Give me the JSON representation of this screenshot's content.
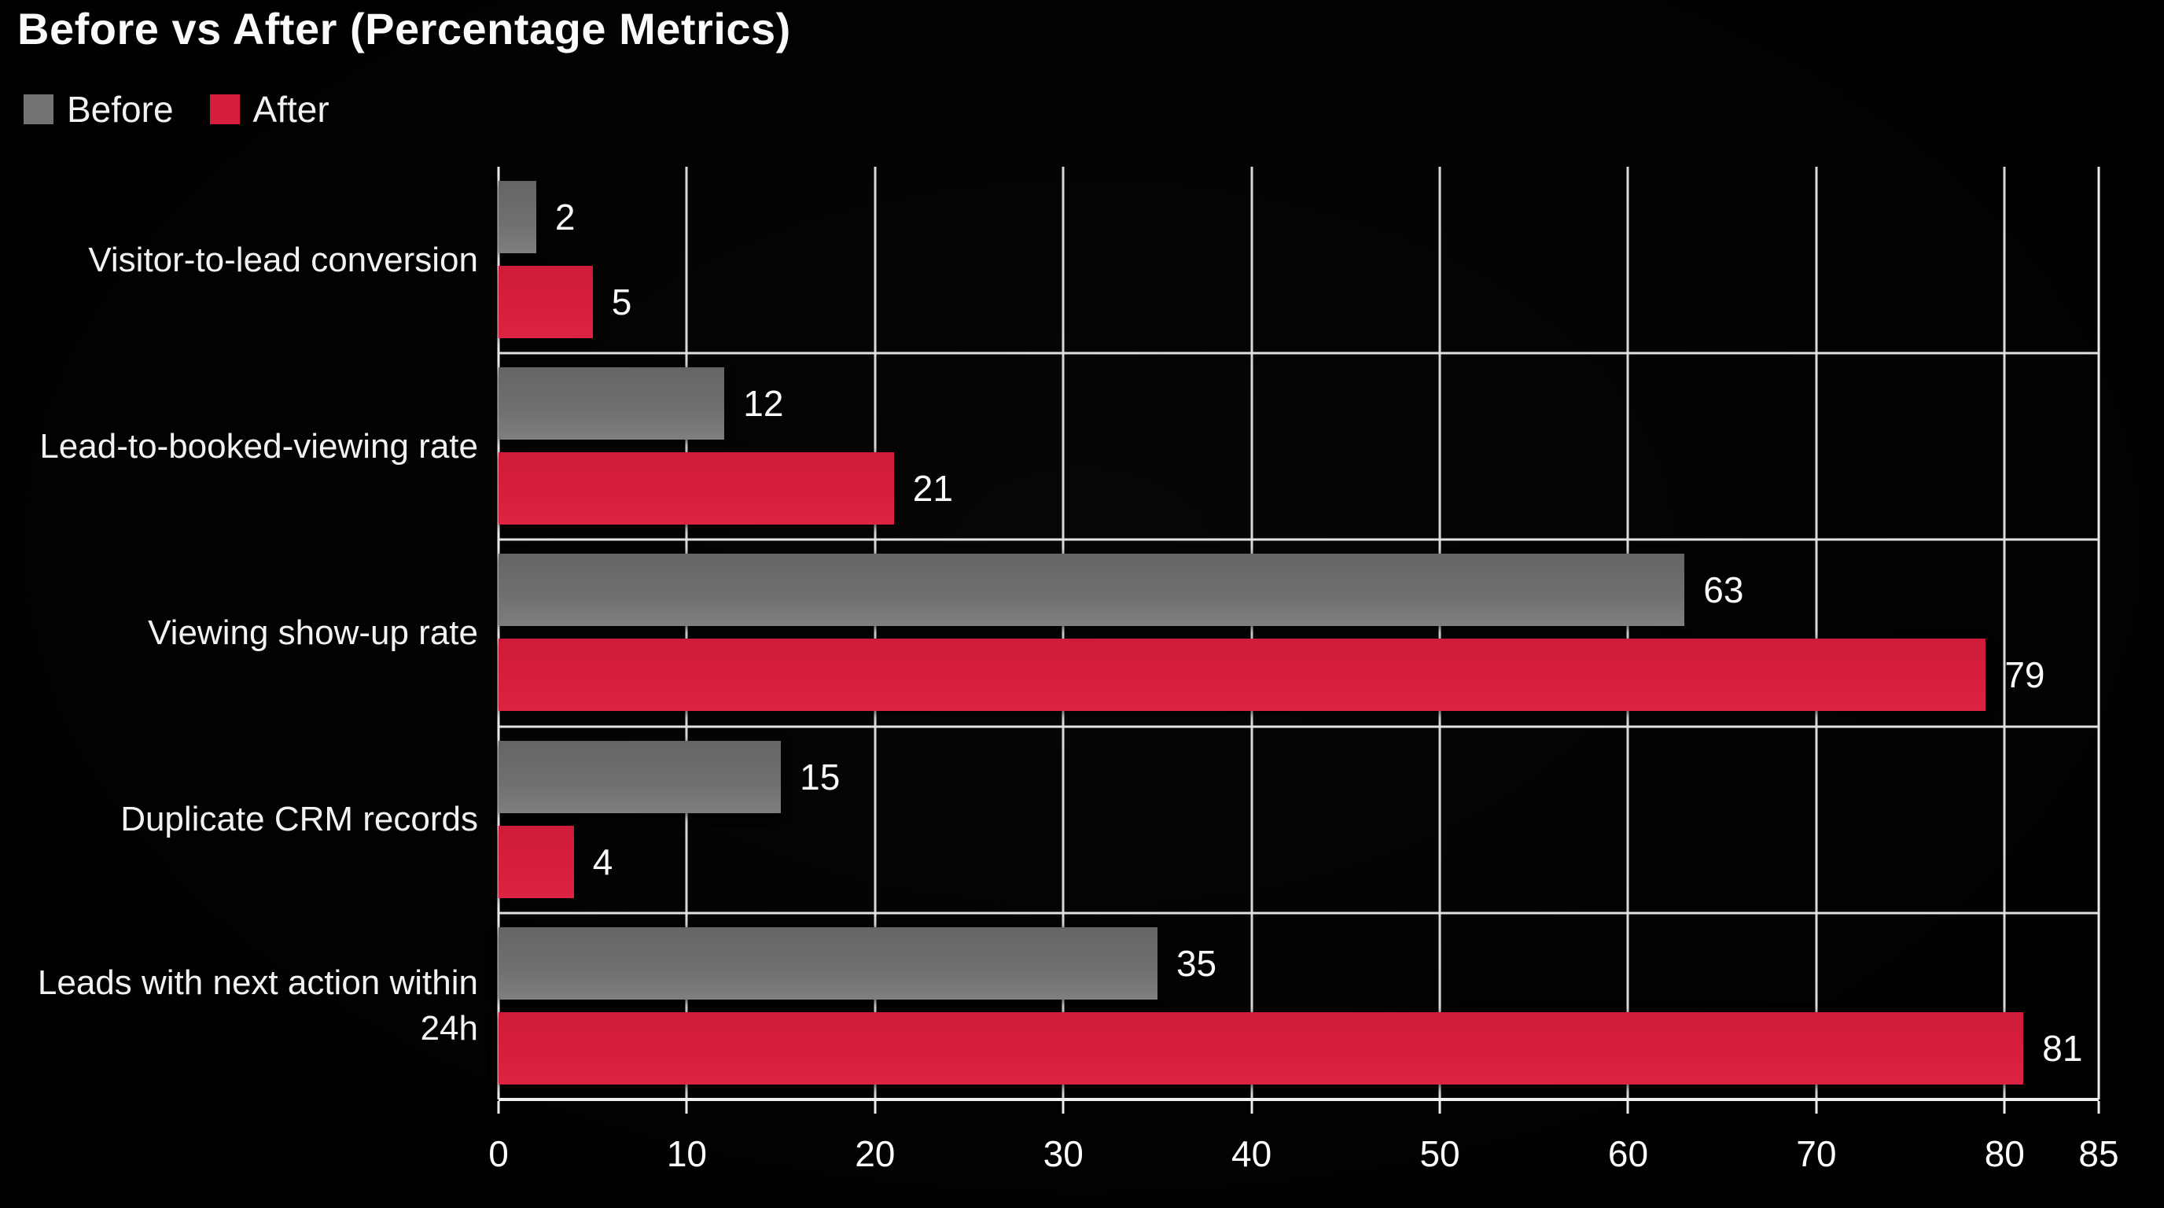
{
  "title": "Before vs After (Percentage Metrics)",
  "legend": {
    "position": "top-left",
    "items": [
      {
        "label": "Before",
        "color": "#717375"
      },
      {
        "label": "After",
        "color": "#d61e3c"
      }
    ]
  },
  "colors": {
    "background": "#000000",
    "text": "#f5f5f5",
    "gridline": "#d9d9d9",
    "axis": "#f0f0f0",
    "before_bar": "#6e7072",
    "after_bar": "#d61e3c"
  },
  "chart_data": {
    "type": "bar",
    "orientation": "horizontal",
    "title": "Before vs After (Percentage Metrics)",
    "categories": [
      "Visitor-to-lead conversion",
      "Lead-to-booked-viewing rate",
      "Viewing show-up rate",
      "Duplicate CRM records",
      "Leads with next action within 24h"
    ],
    "series": [
      {
        "name": "Before",
        "color": "#717375",
        "values": [
          2,
          12,
          63,
          15,
          35
        ]
      },
      {
        "name": "After",
        "color": "#d61e3c",
        "values": [
          5,
          21,
          79,
          4,
          81
        ]
      }
    ],
    "xlabel": "",
    "ylabel": "",
    "xlim": [
      0,
      85
    ],
    "xticks": [
      0,
      10,
      20,
      30,
      40,
      50,
      60,
      70,
      80,
      85
    ],
    "grid": "vertical-gridlines-and-row-separators",
    "legend_position": "top-left",
    "value_labels": "outside-end"
  }
}
